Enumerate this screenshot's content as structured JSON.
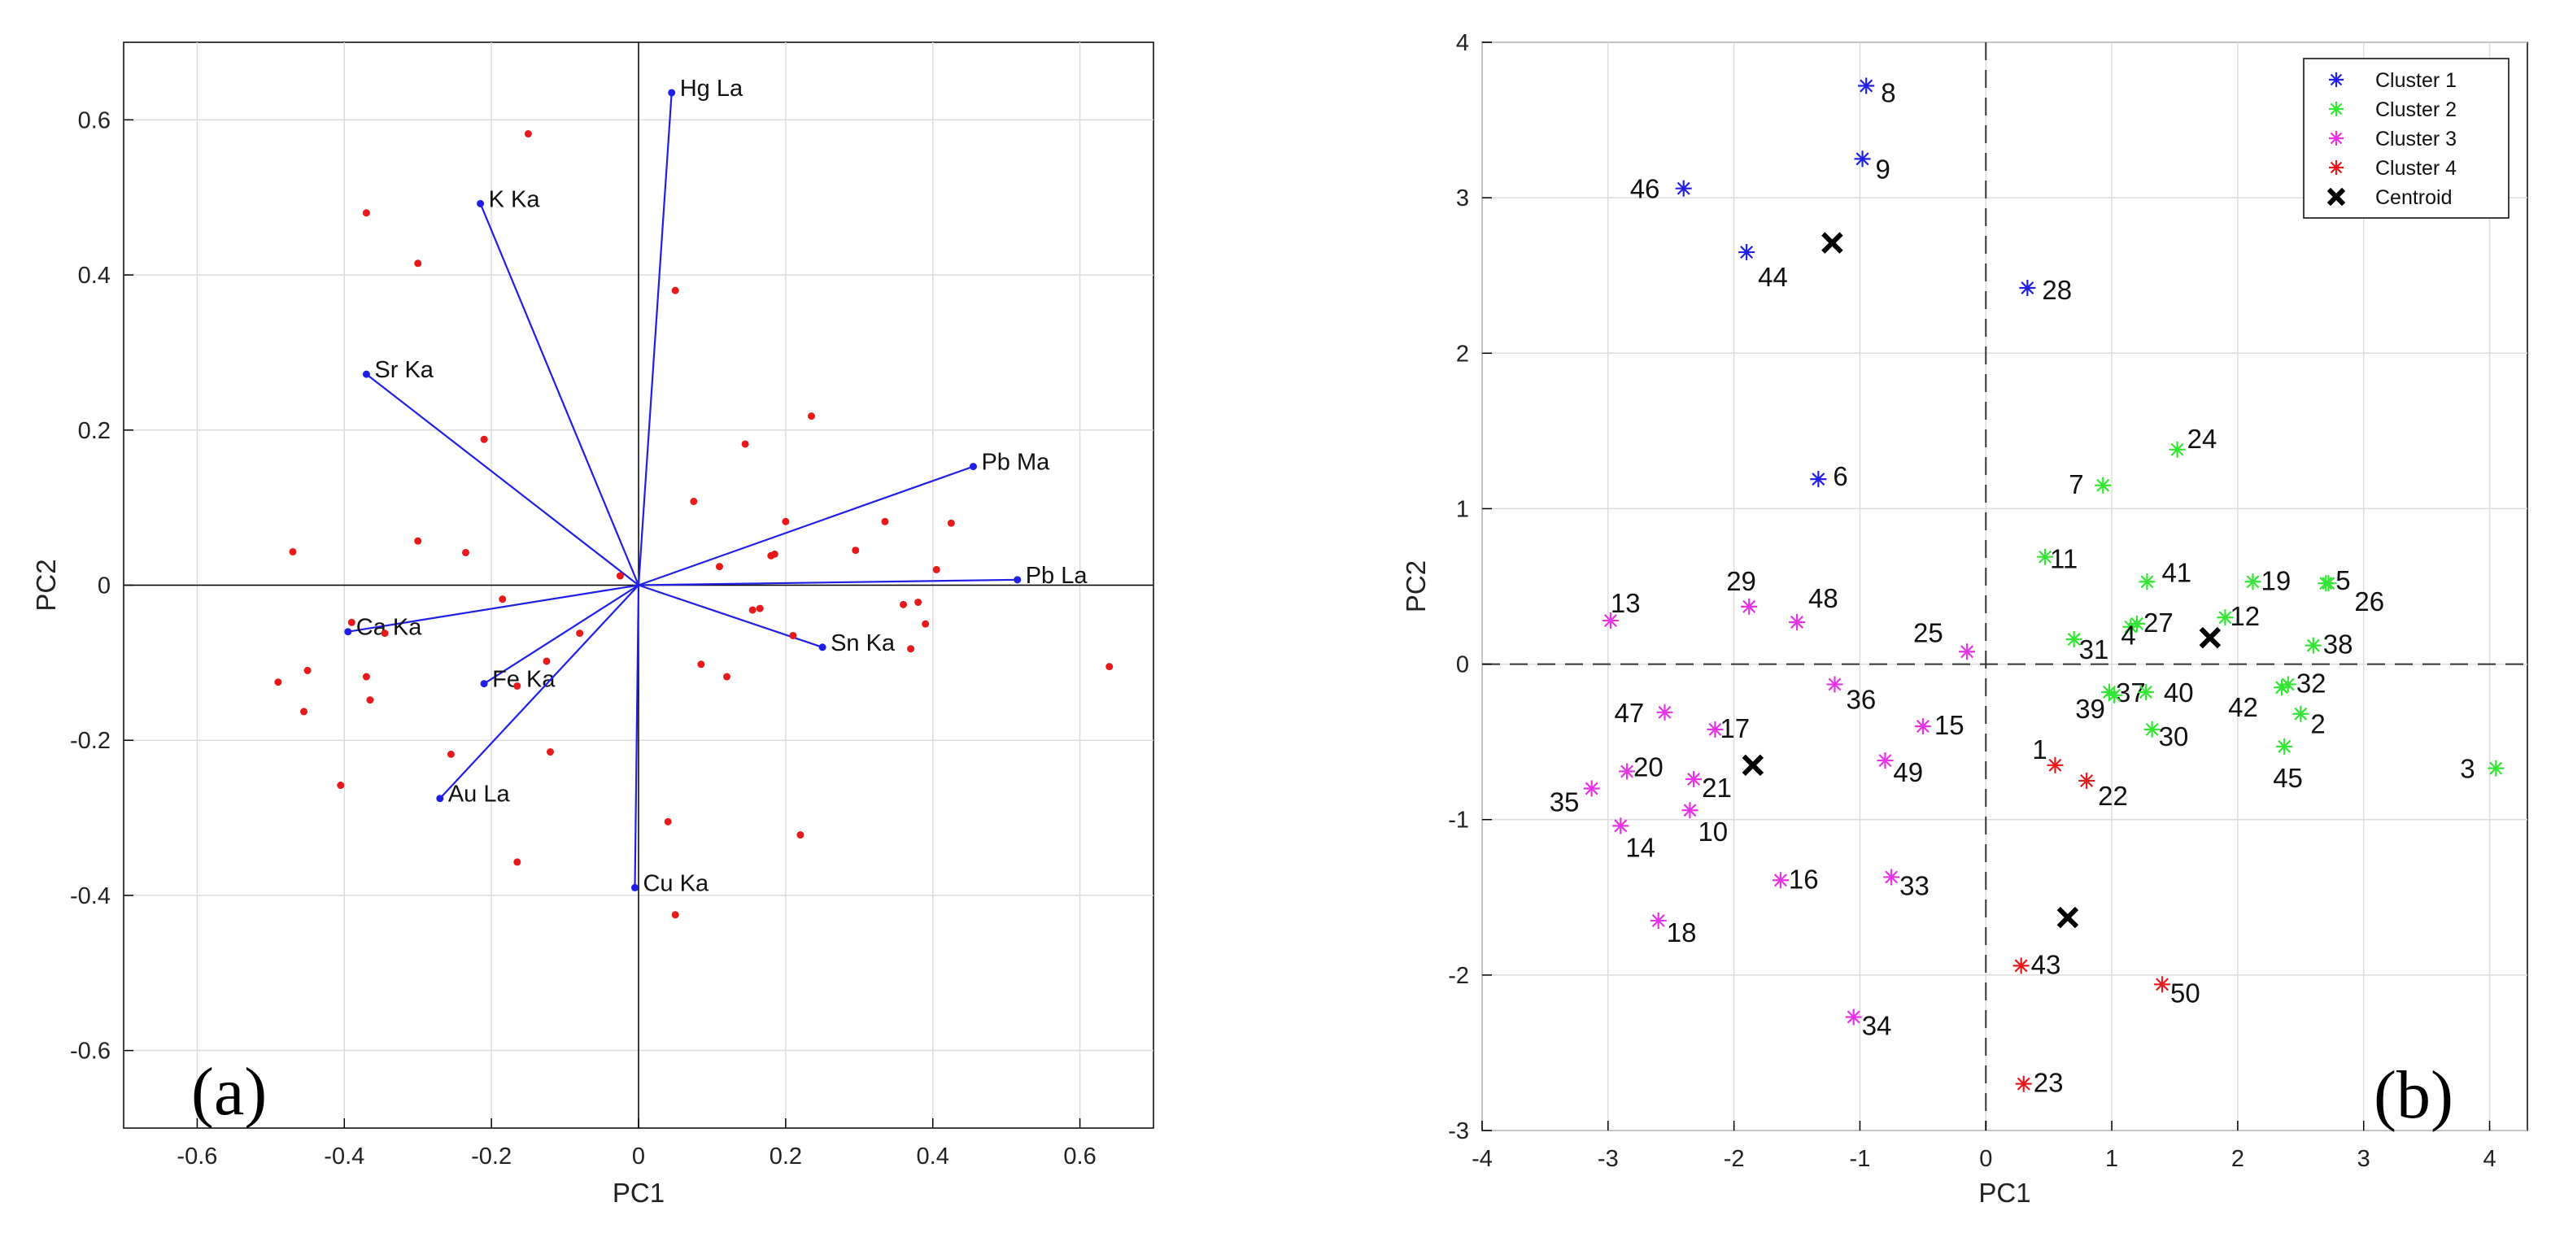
{
  "chart_data": [
    {
      "type": "scatter",
      "subtype": "biplot",
      "panel_label": "(a)",
      "xlabel": "PC1",
      "ylabel": "PC2",
      "xlim": [
        -0.7,
        0.7
      ],
      "ylim": [
        -0.7,
        0.7
      ],
      "xticks": [
        -0.6,
        -0.4,
        -0.2,
        0,
        0.2,
        0.4,
        0.6
      ],
      "yticks": [
        -0.6,
        -0.4,
        -0.2,
        0,
        0.2,
        0.4,
        0.6
      ],
      "xtick_labels": [
        "-0.6",
        "-0.4",
        "-0.2",
        "0",
        "0.2",
        "0.4",
        "0.6"
      ],
      "ytick_labels": [
        "-0.6",
        "-0.4",
        "-0.2",
        "0",
        "0.2",
        "0.4",
        "0.6"
      ],
      "grid": true,
      "colors": {
        "vector": "#1f1fe6",
        "point": "#e61a1a"
      },
      "loadings": [
        {
          "label": "Hg La",
          "x": 0.045,
          "y": 0.635
        },
        {
          "label": "K Ka",
          "x": -0.215,
          "y": 0.492
        },
        {
          "label": "Sr Ka",
          "x": -0.37,
          "y": 0.272
        },
        {
          "label": "Pb Ma",
          "x": 0.455,
          "y": 0.153
        },
        {
          "label": "Pb La",
          "x": 0.515,
          "y": 0.007
        },
        {
          "label": "Ca Ka",
          "x": -0.395,
          "y": -0.06
        },
        {
          "label": "Sn Ka",
          "x": 0.25,
          "y": -0.08
        },
        {
          "label": "Fe Ka",
          "x": -0.21,
          "y": -0.127
        },
        {
          "label": "Au La",
          "x": -0.27,
          "y": -0.275
        },
        {
          "label": "Cu Ka",
          "x": -0.005,
          "y": -0.39
        }
      ],
      "scores": [
        [
          -0.15,
          0.582
        ],
        [
          -0.37,
          0.48
        ],
        [
          -0.3,
          0.415
        ],
        [
          0.05,
          0.38
        ],
        [
          -0.21,
          0.188
        ],
        [
          0.235,
          0.218
        ],
        [
          0.145,
          0.182
        ],
        [
          0.075,
          0.108
        ],
        [
          -0.47,
          0.043
        ],
        [
          -0.3,
          0.057
        ],
        [
          -0.235,
          0.042
        ],
        [
          0.2,
          0.082
        ],
        [
          0.335,
          0.082
        ],
        [
          0.425,
          0.08
        ],
        [
          0.295,
          0.045
        ],
        [
          0.185,
          0.04
        ],
        [
          0.18,
          0.038
        ],
        [
          0.11,
          0.024
        ],
        [
          0.405,
          0.02
        ],
        [
          -0.025,
          0.012
        ],
        [
          -0.185,
          -0.018
        ],
        [
          0.165,
          -0.03
        ],
        [
          0.155,
          -0.032
        ],
        [
          0.36,
          -0.025
        ],
        [
          0.38,
          -0.022
        ],
        [
          0.39,
          -0.05
        ],
        [
          0.37,
          -0.082
        ],
        [
          -0.08,
          -0.062
        ],
        [
          -0.39,
          -0.048
        ],
        [
          -0.345,
          -0.062
        ],
        [
          0.21,
          -0.065
        ],
        [
          -0.45,
          -0.11
        ],
        [
          -0.37,
          -0.118
        ],
        [
          -0.49,
          -0.125
        ],
        [
          -0.365,
          -0.148
        ],
        [
          -0.455,
          -0.163
        ],
        [
          -0.125,
          -0.098
        ],
        [
          0.085,
          -0.102
        ],
        [
          0.12,
          -0.118
        ],
        [
          -0.165,
          -0.13
        ],
        [
          -0.12,
          -0.215
        ],
        [
          -0.255,
          -0.218
        ],
        [
          -0.405,
          -0.258
        ],
        [
          0.04,
          -0.305
        ],
        [
          0.22,
          -0.322
        ],
        [
          -0.165,
          -0.357
        ],
        [
          0.05,
          -0.425
        ],
        [
          0.64,
          -0.105
        ]
      ]
    },
    {
      "type": "scatter",
      "subtype": "clusters",
      "panel_label": "(b)",
      "xlabel": "PC1",
      "ylabel": "PC2",
      "xlim": [
        -4,
        4.3
      ],
      "ylim": [
        -3,
        4
      ],
      "xticks": [
        -4,
        -3,
        -2,
        -1,
        0,
        1,
        2,
        3,
        4
      ],
      "yticks": [
        -3,
        -2,
        -1,
        0,
        1,
        2,
        3,
        4
      ],
      "xtick_labels": [
        "-4",
        "-3",
        "-2",
        "-1",
        "0",
        "1",
        "2",
        "3",
        "4"
      ],
      "ytick_labels": [
        "-3",
        "-2",
        "-1",
        "0",
        "1",
        "2",
        "3",
        "4"
      ],
      "grid": true,
      "legend_position": "top-right",
      "legend": [
        {
          "label": "Cluster 1",
          "color": "#1f1fe6",
          "marker": "asterisk"
        },
        {
          "label": "Cluster 2",
          "color": "#33e633",
          "marker": "asterisk"
        },
        {
          "label": "Cluster 3",
          "color": "#e633e6",
          "marker": "asterisk"
        },
        {
          "label": "Cluster 4",
          "color": "#e61a1a",
          "marker": "asterisk"
        },
        {
          "label": "Centroid",
          "color": "#000000",
          "marker": "x"
        }
      ],
      "series": [
        {
          "name": "Cluster 1",
          "points": [
            {
              "id": "8",
              "x": -0.95,
              "y": 3.72
            },
            {
              "id": "9",
              "x": -0.98,
              "y": 3.25
            },
            {
              "id": "46",
              "x": -2.4,
              "y": 3.06
            },
            {
              "id": "44",
              "x": -1.9,
              "y": 2.65
            },
            {
              "id": "28",
              "x": 0.33,
              "y": 2.42
            },
            {
              "id": "6",
              "x": -1.33,
              "y": 1.19
            }
          ]
        },
        {
          "name": "Cluster 2",
          "points": [
            {
              "id": "24",
              "x": 1.52,
              "y": 1.38
            },
            {
              "id": "7",
              "x": 0.93,
              "y": 1.15
            },
            {
              "id": "11",
              "x": 0.47,
              "y": 0.69
            },
            {
              "id": "41",
              "x": 1.28,
              "y": 0.53
            },
            {
              "id": "19",
              "x": 2.12,
              "y": 0.53
            },
            {
              "id": "5",
              "x": 2.7,
              "y": 0.52
            },
            {
              "id": "26",
              "x": 2.72,
              "y": 0.52
            },
            {
              "id": "12",
              "x": 1.9,
              "y": 0.3
            },
            {
              "id": "27",
              "x": 1.2,
              "y": 0.26
            },
            {
              "id": "4",
              "x": 1.15,
              "y": 0.24
            },
            {
              "id": "31",
              "x": 0.7,
              "y": 0.16
            },
            {
              "id": "38",
              "x": 2.6,
              "y": 0.12
            },
            {
              "id": "32",
              "x": 2.4,
              "y": -0.13
            },
            {
              "id": "37",
              "x": 0.98,
              "y": -0.18
            },
            {
              "id": "40",
              "x": 1.27,
              "y": -0.18
            },
            {
              "id": "39",
              "x": 1.02,
              "y": -0.2
            },
            {
              "id": "42",
              "x": 2.35,
              "y": -0.15
            },
            {
              "id": "2",
              "x": 2.5,
              "y": -0.32
            },
            {
              "id": "30",
              "x": 1.32,
              "y": -0.42
            },
            {
              "id": "45",
              "x": 2.37,
              "y": -0.53
            },
            {
              "id": "3",
              "x": 4.05,
              "y": -0.67
            }
          ]
        },
        {
          "name": "Cluster 3",
          "points": [
            {
              "id": "13",
              "x": -2.98,
              "y": 0.28
            },
            {
              "id": "29",
              "x": -1.88,
              "y": 0.37
            },
            {
              "id": "48",
              "x": -1.5,
              "y": 0.27
            },
            {
              "id": "25",
              "x": -0.15,
              "y": 0.08
            },
            {
              "id": "36",
              "x": -1.2,
              "y": -0.13
            },
            {
              "id": "15",
              "x": -0.5,
              "y": -0.4
            },
            {
              "id": "47",
              "x": -2.55,
              "y": -0.31
            },
            {
              "id": "17",
              "x": -2.15,
              "y": -0.42
            },
            {
              "id": "49",
              "x": -0.8,
              "y": -0.62
            },
            {
              "id": "20",
              "x": -2.85,
              "y": -0.69
            },
            {
              "id": "21",
              "x": -2.32,
              "y": -0.74
            },
            {
              "id": "35",
              "x": -3.13,
              "y": -0.8
            },
            {
              "id": "10",
              "x": -2.35,
              "y": -0.94
            },
            {
              "id": "14",
              "x": -2.9,
              "y": -1.04
            },
            {
              "id": "16",
              "x": -1.63,
              "y": -1.39
            },
            {
              "id": "33",
              "x": -0.75,
              "y": -1.37
            },
            {
              "id": "18",
              "x": -2.6,
              "y": -1.65
            },
            {
              "id": "34",
              "x": -1.05,
              "y": -2.27
            }
          ]
        },
        {
          "name": "Cluster 4",
          "points": [
            {
              "id": "1",
              "x": 0.55,
              "y": -0.65
            },
            {
              "id": "22",
              "x": 0.8,
              "y": -0.75
            },
            {
              "id": "43",
              "x": 0.28,
              "y": -1.94
            },
            {
              "id": "50",
              "x": 1.4,
              "y": -2.06
            },
            {
              "id": "23",
              "x": 0.3,
              "y": -2.7
            }
          ]
        }
      ],
      "centroids": [
        {
          "x": -1.22,
          "y": 2.71
        },
        {
          "x": 1.78,
          "y": 0.17
        },
        {
          "x": -1.85,
          "y": -0.65
        },
        {
          "x": 0.65,
          "y": -1.63
        }
      ]
    }
  ]
}
